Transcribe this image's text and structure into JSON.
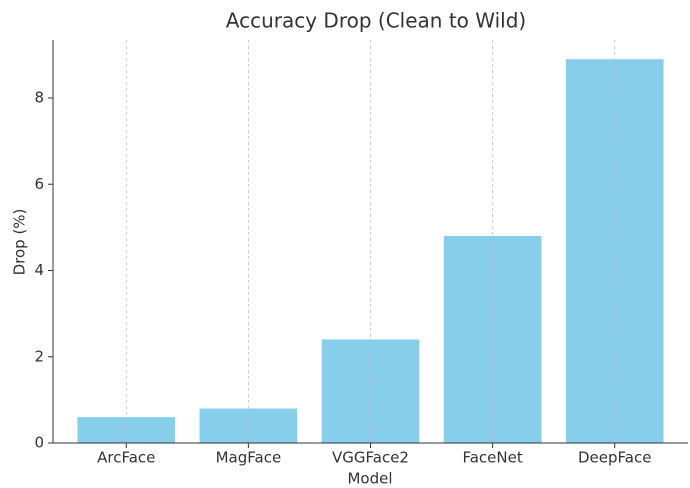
{
  "chart_data": {
    "type": "bar",
    "title": "Accuracy Drop (Clean to Wild)",
    "x_label": "Model",
    "y_label": "Drop (%)",
    "categories": [
      "ArcFace",
      "MagFace",
      "VGGFace2",
      "FaceNet",
      "DeepFace"
    ],
    "values": [
      0.6,
      0.8,
      2.4,
      4.8,
      8.9
    ],
    "color": "#87ceeb",
    "ylim": [
      0,
      9.345
    ],
    "yticks": [
      0,
      2,
      4,
      6,
      8
    ],
    "grid": true,
    "grid_axis": "x"
  }
}
